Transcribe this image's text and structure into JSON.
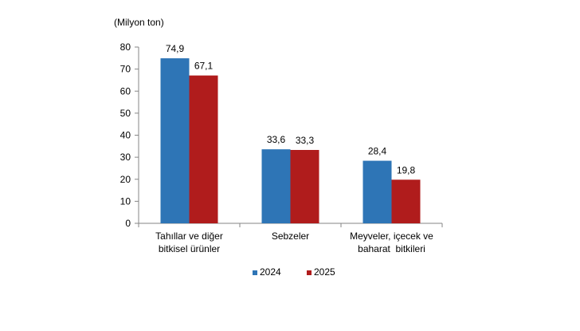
{
  "chart_data": {
    "type": "bar",
    "unit_label": "(Milyon ton)",
    "categories": [
      [
        "Tahıllar ve diğer",
        "bitkisel ürünler"
      ],
      [
        "Sebzeler"
      ],
      [
        "Meyveler, içecek ve",
        "baharat  bitkileri"
      ]
    ],
    "series": [
      {
        "name": "2024",
        "color": "#2e75b6",
        "values": [
          74.9,
          33.6,
          28.4
        ],
        "labels": [
          "74,9",
          "33,6",
          "28,4"
        ]
      },
      {
        "name": "2025",
        "color": "#b01c1c",
        "values": [
          67.1,
          33.3,
          19.8
        ],
        "labels": [
          "67,1",
          "33,3",
          "19,8"
        ]
      }
    ],
    "ylim": [
      0,
      80
    ],
    "yticks": [
      0,
      10,
      20,
      30,
      40,
      50,
      60,
      70,
      80
    ],
    "grid": false,
    "legend_position": "bottom"
  }
}
